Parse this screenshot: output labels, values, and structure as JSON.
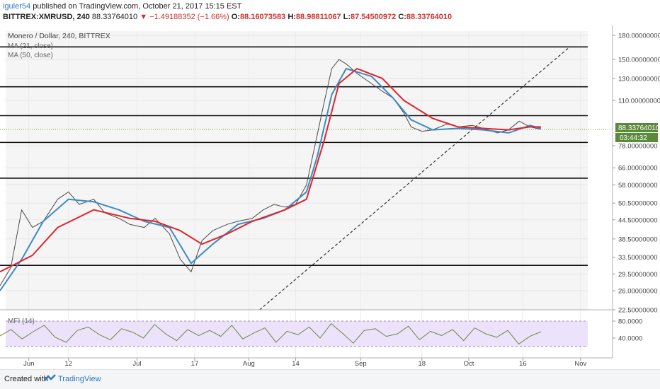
{
  "header": {
    "user": "iguler54",
    "published_text": "published on TradingView.com, October 21, 2017 15:15 EST",
    "symbol": "BITTREX:XMRUSD, 240",
    "last": "88.33764010",
    "change_arrow": "▼",
    "change": "−1.49188352 (−1.66%)",
    "open_label": "O:",
    "open": "88.16073583",
    "high_label": "H:",
    "high": "88.98811067",
    "low_label": "L:",
    "low": "87.54500972",
    "close_label": "C:",
    "close": "88.33764010"
  },
  "legend": {
    "title": "Monero / Dollar, 240, BITTREX",
    "ma1": "MA (21, close)",
    "ma2": "MA (50, close)"
  },
  "colors": {
    "price_line": "#4a4a4a",
    "ma21": "#3c8ac4",
    "ma50": "#e0252b",
    "mfi": "#6a8a3a",
    "mfi_band": "#ece2fb"
  },
  "price_axis": {
    "last_price_label": "88.33764010",
    "countdown_label": "03:44:32"
  },
  "footer": {
    "created_with": "Created with",
    "brand": "TradingView"
  },
  "chart_data": {
    "type": "line",
    "title": "Monero / Dollar, 240, BITTREX",
    "y_scale": "log",
    "ylim": [
      22.5,
      190
    ],
    "y_ticks": [
      "180.00000000",
      "150.00000000",
      "130.00000000",
      "110.00000000",
      "78.00000000",
      "66.00000000",
      "58.00000000",
      "50.50000000",
      "44.50000000",
      "38.50000000",
      "33.50000000",
      "29.50000000",
      "26.00000000",
      "22.50000000"
    ],
    "x_tick_labels": [
      "Jun",
      "12",
      "Jul",
      "17",
      "Aug",
      "14",
      "Sep",
      "18",
      "Oct",
      "16",
      "Nov"
    ],
    "x_range": [
      "2017-05-24",
      "2017-11-03"
    ],
    "series": [
      {
        "name": "Price",
        "x": [
          "2017-05-24",
          "2017-05-27",
          "2017-05-30",
          "2017-06-02",
          "2017-06-05",
          "2017-06-09",
          "2017-06-12",
          "2017-06-15",
          "2017-06-19",
          "2017-06-22",
          "2017-06-26",
          "2017-06-29",
          "2017-07-03",
          "2017-07-06",
          "2017-07-10",
          "2017-07-13",
          "2017-07-16",
          "2017-07-19",
          "2017-07-22",
          "2017-07-26",
          "2017-07-29",
          "2017-08-02",
          "2017-08-05",
          "2017-08-08",
          "2017-08-11",
          "2017-08-14",
          "2017-08-17",
          "2017-08-20",
          "2017-08-22",
          "2017-08-24",
          "2017-08-26",
          "2017-08-28",
          "2017-08-31",
          "2017-09-04",
          "2017-09-07",
          "2017-09-10",
          "2017-09-13",
          "2017-09-15",
          "2017-09-18",
          "2017-09-21",
          "2017-09-25",
          "2017-09-28",
          "2017-10-02",
          "2017-10-05",
          "2017-10-09",
          "2017-10-12",
          "2017-10-15",
          "2017-10-18",
          "2017-10-21"
        ],
        "values": [
          27,
          31,
          48,
          42,
          44,
          52,
          55,
          50,
          52,
          47,
          45,
          43,
          42,
          45,
          40,
          33,
          30,
          38,
          41,
          43,
          44,
          45,
          48,
          50,
          49,
          50,
          58,
          85,
          110,
          140,
          150,
          145,
          135,
          125,
          118,
          112,
          100,
          90,
          87,
          88,
          92,
          90,
          91,
          89,
          86,
          88,
          94,
          90,
          88.34
        ]
      },
      {
        "name": "MA (21, close)",
        "x": [
          "2017-05-24",
          "2017-05-30",
          "2017-06-05",
          "2017-06-12",
          "2017-06-19",
          "2017-06-26",
          "2017-07-03",
          "2017-07-10",
          "2017-07-16",
          "2017-07-22",
          "2017-07-29",
          "2017-08-05",
          "2017-08-11",
          "2017-08-17",
          "2017-08-20",
          "2017-08-24",
          "2017-08-28",
          "2017-09-04",
          "2017-09-10",
          "2017-09-15",
          "2017-09-21",
          "2017-09-28",
          "2017-10-05",
          "2017-10-12",
          "2017-10-18",
          "2017-10-21"
        ],
        "values": [
          26,
          33,
          44,
          52,
          51,
          48,
          44,
          42,
          32,
          37,
          43,
          45,
          48,
          55,
          72,
          115,
          140,
          132,
          112,
          95,
          88,
          89,
          88,
          86,
          91,
          89
        ]
      },
      {
        "name": "MA (50, close)",
        "x": [
          "2017-05-24",
          "2017-06-02",
          "2017-06-09",
          "2017-06-19",
          "2017-06-29",
          "2017-07-06",
          "2017-07-13",
          "2017-07-19",
          "2017-07-26",
          "2017-08-02",
          "2017-08-11",
          "2017-08-17",
          "2017-08-22",
          "2017-08-26",
          "2017-08-31",
          "2017-09-07",
          "2017-09-13",
          "2017-09-21",
          "2017-09-28",
          "2017-10-05",
          "2017-10-12",
          "2017-10-18",
          "2017-10-21"
        ],
        "values": [
          30,
          34,
          42,
          48,
          45,
          44,
          41,
          37,
          40,
          44,
          48,
          52,
          82,
          125,
          140,
          130,
          110,
          96,
          90,
          89,
          88,
          90,
          90
        ]
      }
    ],
    "horizontal_levels": [
      165,
      122,
      98,
      80,
      61,
      31.5
    ],
    "trendline": {
      "x": [
        "2017-08-04",
        "2017-10-29"
      ],
      "values": [
        22.5,
        165
      ]
    },
    "mfi": {
      "label": "MFI (14)",
      "ylim": [
        0,
        100
      ],
      "y_ticks": [
        "80.0000",
        "40.0000"
      ],
      "band": [
        20,
        80
      ],
      "values": [
        45,
        60,
        38,
        55,
        70,
        42,
        30,
        58,
        66,
        48,
        36,
        62,
        54,
        40,
        72,
        50,
        34,
        60,
        46,
        58,
        44,
        70,
        38,
        52,
        64,
        30,
        56,
        48,
        66,
        40,
        74,
        52,
        28,
        58,
        62,
        44,
        50,
        68,
        36,
        56,
        46,
        60,
        34,
        64,
        50,
        42,
        58,
        26,
        44,
        55
      ]
    }
  }
}
